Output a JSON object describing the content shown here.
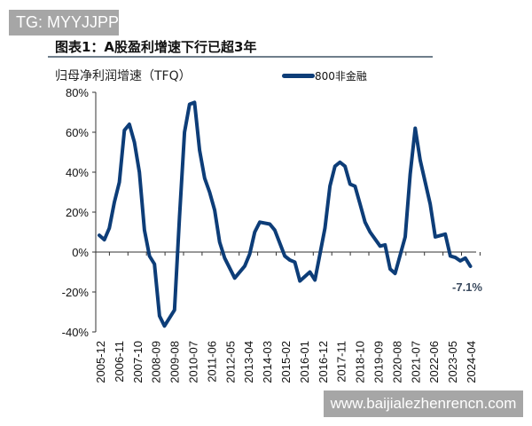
{
  "watermarks": {
    "top_left": "TG: MYYJJPP",
    "bottom_right": "www.baijialezhenrencn.com"
  },
  "chart_data": {
    "type": "line",
    "title": "图表1：A股盈利增速下行已超3年",
    "ylabel": "归母净利润增速（TFQ）",
    "xlabel": "",
    "legend": [
      {
        "name": "800非金融",
        "color": "#0d3d78"
      }
    ],
    "legend_placement": "top-right",
    "ylim": [
      -40,
      80
    ],
    "yticks": [
      "80%",
      "60%",
      "40%",
      "20%",
      "0%",
      "-20%",
      "-40%"
    ],
    "yticks_values": [
      80,
      60,
      40,
      20,
      0,
      -20,
      -40
    ],
    "xticks": [
      "2005-12",
      "2006-11",
      "2007-10",
      "2008-09",
      "2009-08",
      "2010-07",
      "2011-06",
      "2012-05",
      "2013-04",
      "2014-03",
      "2015-02",
      "2016-01",
      "2016-12",
      "2017-11",
      "2018-10",
      "2019-09",
      "2020-08",
      "2021-07",
      "2022-06",
      "2023-05",
      "2024-04"
    ],
    "grid": false,
    "annotation": {
      "text": "-7.1%",
      "date": "2024-06",
      "value": -7.1
    },
    "series": [
      {
        "name": "800非金融",
        "color": "#0d3d78",
        "x": [
          "2005-12",
          "2006-03",
          "2006-06",
          "2006-09",
          "2006-12",
          "2007-03",
          "2007-06",
          "2007-09",
          "2007-12",
          "2008-03",
          "2008-06",
          "2008-09",
          "2008-12",
          "2009-03",
          "2009-09",
          "2009-12",
          "2010-03",
          "2010-06",
          "2010-09",
          "2010-12",
          "2011-03",
          "2011-06",
          "2011-09",
          "2011-12",
          "2012-03",
          "2012-09",
          "2013-03",
          "2013-06",
          "2013-09",
          "2013-12",
          "2014-06",
          "2014-09",
          "2015-03",
          "2015-06",
          "2015-09",
          "2015-12",
          "2016-06",
          "2016-09",
          "2017-03",
          "2017-06",
          "2017-09",
          "2017-12",
          "2018-03",
          "2018-06",
          "2018-09",
          "2018-12",
          "2019-03",
          "2019-06",
          "2019-12",
          "2020-03",
          "2020-06",
          "2020-09",
          "2021-03",
          "2021-06",
          "2021-09",
          "2021-12",
          "2022-06",
          "2022-09",
          "2023-03",
          "2023-06",
          "2023-09",
          "2023-12",
          "2024-03",
          "2024-06"
        ],
        "values": [
          8.4,
          6.2,
          12,
          25,
          35,
          61,
          64,
          55,
          40,
          11,
          -2,
          -6,
          -32,
          -37,
          -29,
          18,
          60,
          74,
          75,
          51,
          37,
          30,
          21,
          5,
          -3,
          -13,
          -7,
          -1,
          10,
          15,
          14,
          11,
          -2,
          -4,
          -5,
          -14.5,
          -10,
          -14,
          12,
          33,
          43,
          45,
          43,
          34,
          33,
          24,
          15,
          10,
          3,
          3.6,
          -8.5,
          -10.7,
          7.6,
          39,
          62,
          46,
          24,
          7.6,
          9,
          -2,
          -2.7,
          -4.4,
          -3,
          -7.1
        ]
      }
    ]
  }
}
